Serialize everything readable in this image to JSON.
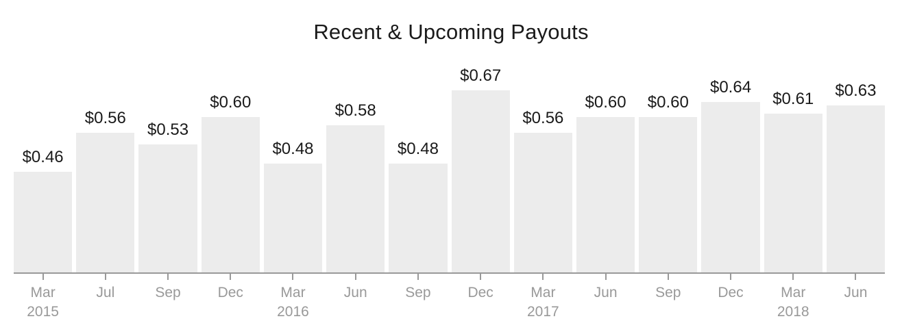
{
  "chart_data": {
    "type": "bar",
    "title": "Recent & Upcoming Payouts",
    "categories": [
      "Mar 2015",
      "Jul",
      "Sep",
      "Dec",
      "Mar 2016",
      "Jun",
      "Sep",
      "Dec",
      "Mar 2017",
      "Jun",
      "Sep",
      "Dec",
      "Mar 2018",
      "Jun"
    ],
    "tick_labels": [
      {
        "month": "Mar",
        "year": "2015"
      },
      {
        "month": "Jul",
        "year": ""
      },
      {
        "month": "Sep",
        "year": ""
      },
      {
        "month": "Dec",
        "year": ""
      },
      {
        "month": "Mar",
        "year": "2016"
      },
      {
        "month": "Jun",
        "year": ""
      },
      {
        "month": "Sep",
        "year": ""
      },
      {
        "month": "Dec",
        "year": ""
      },
      {
        "month": "Mar",
        "year": "2017"
      },
      {
        "month": "Jun",
        "year": ""
      },
      {
        "month": "Sep",
        "year": ""
      },
      {
        "month": "Dec",
        "year": ""
      },
      {
        "month": "Mar",
        "year": "2018"
      },
      {
        "month": "Jun",
        "year": ""
      }
    ],
    "values": [
      0.46,
      0.56,
      0.53,
      0.6,
      0.48,
      0.58,
      0.48,
      0.67,
      0.56,
      0.6,
      0.6,
      0.64,
      0.61,
      0.63
    ],
    "data_labels": [
      "$0.46",
      "$0.56",
      "$0.53",
      "$0.60",
      "$0.48",
      "$0.58",
      "$0.48",
      "$0.67",
      "$0.56",
      "$0.60",
      "$0.60",
      "$0.64",
      "$0.61",
      "$0.63"
    ],
    "xlabel": "",
    "ylabel": "",
    "y_axis_implied_range": [
      0.2,
      0.72
    ],
    "grid": "off",
    "legend_position": "none",
    "bar_color": "#ececec",
    "axis_color": "#999999",
    "tick_label_color": "#999999",
    "value_label_color": "#1a1a1a",
    "title_color": "#1a1a1a",
    "background_color": "#ffffff"
  }
}
